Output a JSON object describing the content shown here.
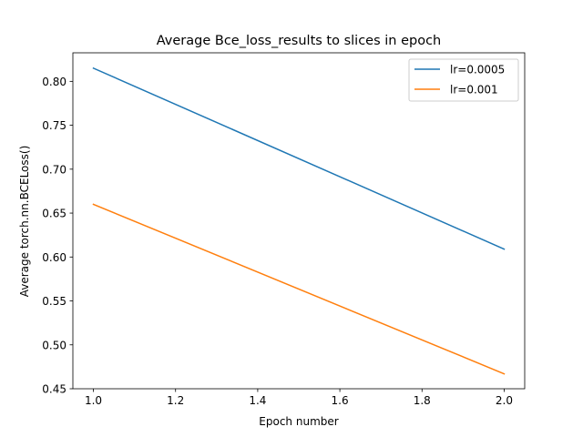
{
  "chart_data": {
    "type": "line",
    "title": "Average Bce_loss_results to slices in epoch",
    "xlabel": "Epoch number",
    "ylabel": "Average torch.nn.BCELoss()",
    "xlim": [
      0.95,
      2.05
    ],
    "ylim": [
      0.45,
      0.8325
    ],
    "x_ticks": [
      1.0,
      1.2,
      1.4,
      1.6,
      1.8,
      2.0
    ],
    "x_tick_labels": [
      "1.0",
      "1.2",
      "1.4",
      "1.6",
      "1.8",
      "2.0"
    ],
    "y_ticks": [
      0.45,
      0.5,
      0.55,
      0.6,
      0.65,
      0.7,
      0.75,
      0.8
    ],
    "y_tick_labels": [
      "0.45",
      "0.50",
      "0.55",
      "0.60",
      "0.65",
      "0.70",
      "0.75",
      "0.80"
    ],
    "grid": false,
    "legend_position": "top-right",
    "series": [
      {
        "name": "lr=0.0005",
        "color": "#1f77b4",
        "x": [
          1.0,
          2.0
        ],
        "y": [
          0.815,
          0.609
        ]
      },
      {
        "name": "lr=0.001",
        "color": "#ff7f0e",
        "x": [
          1.0,
          2.0
        ],
        "y": [
          0.66,
          0.467
        ]
      }
    ]
  }
}
